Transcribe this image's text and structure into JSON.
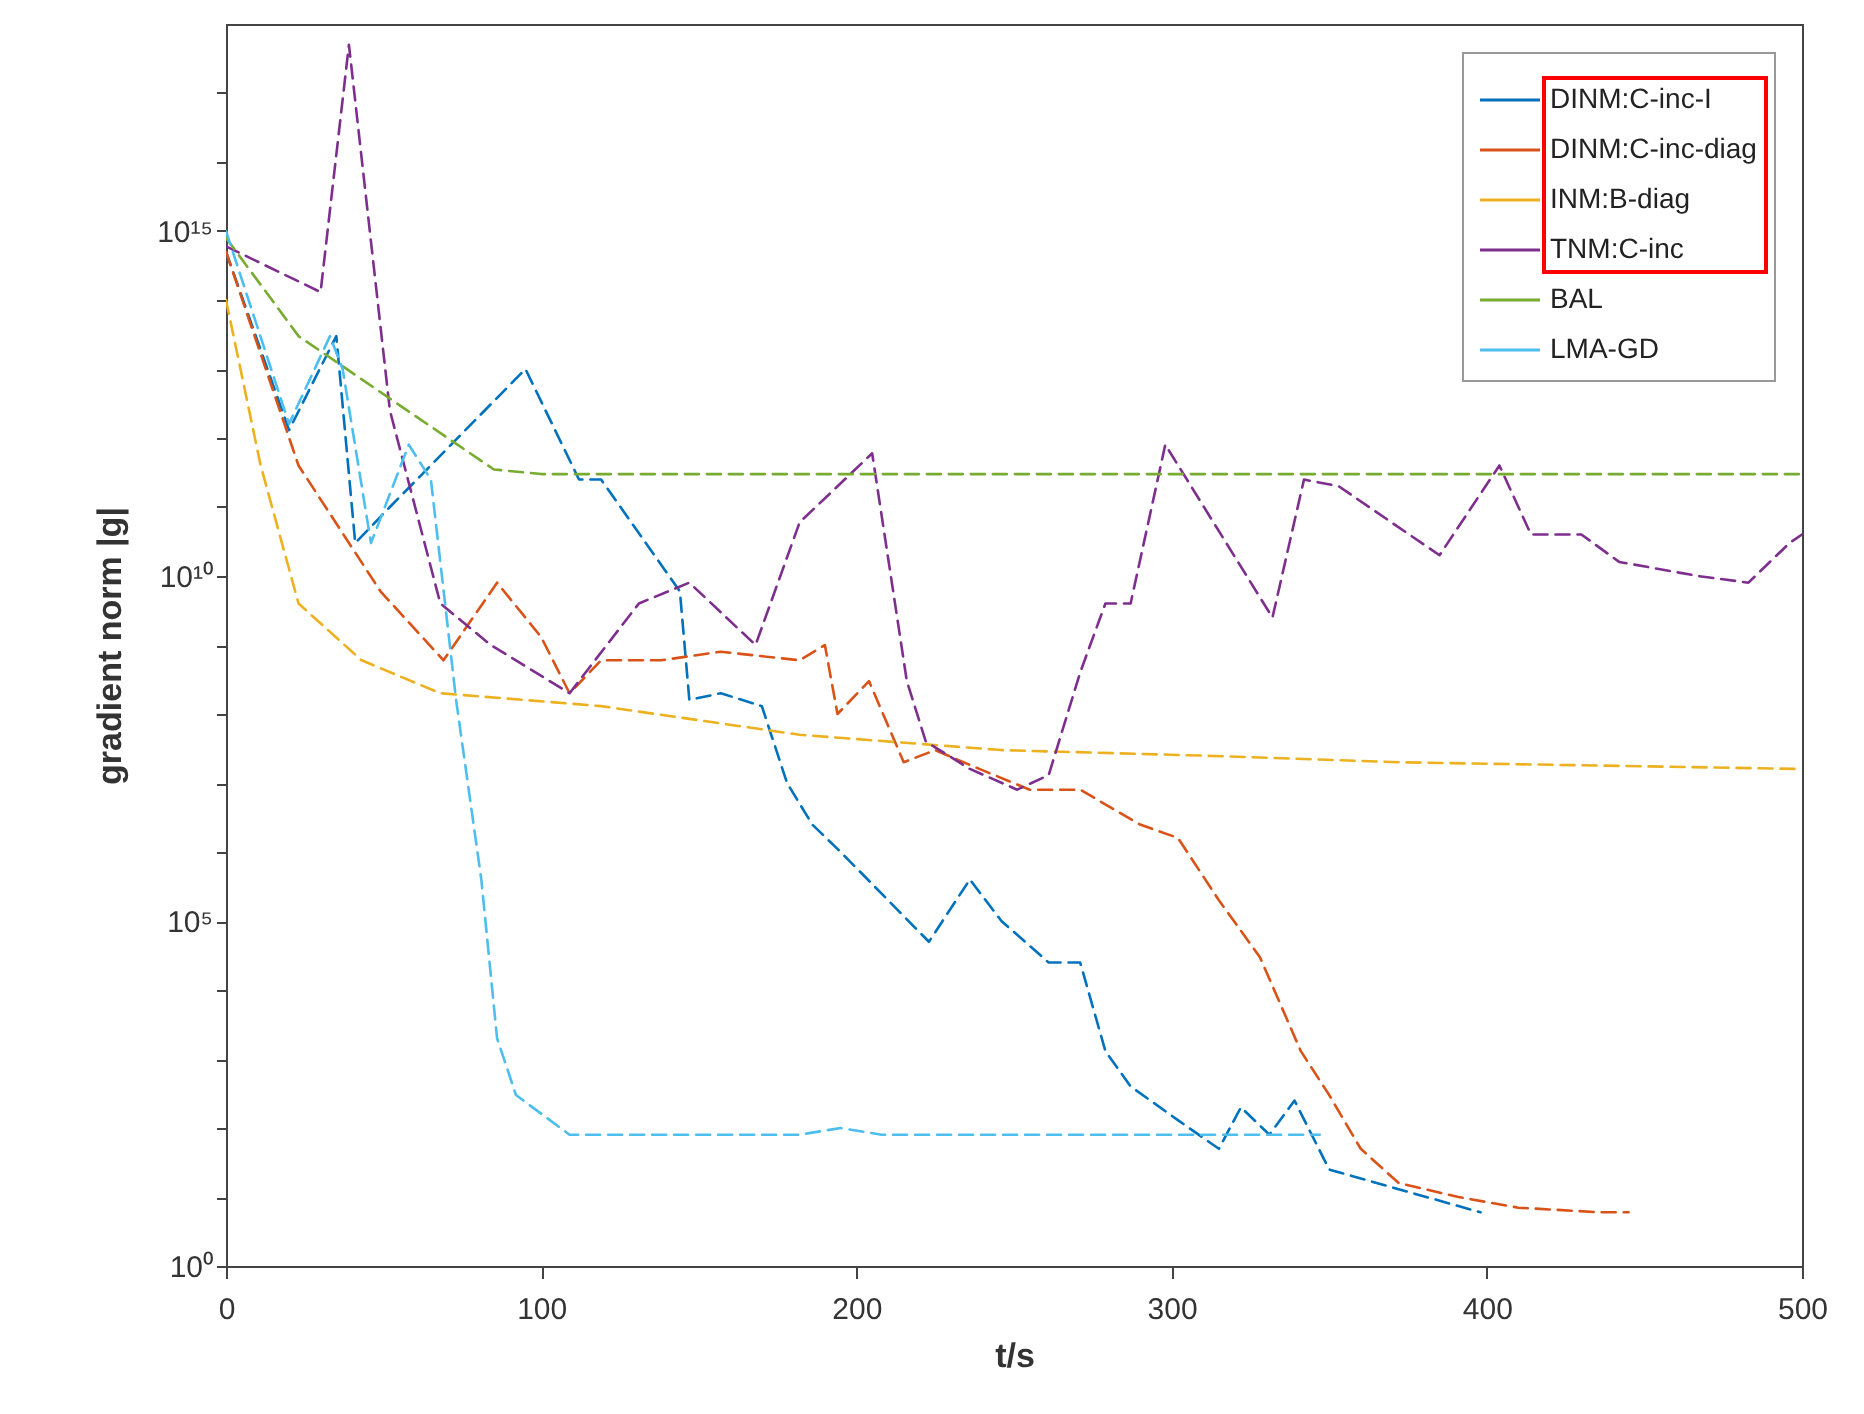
{
  "chart_data": {
    "type": "line",
    "xlabel": "t/s",
    "ylabel": "gradient norm |g|",
    "log": "y",
    "line_style": "dashed",
    "legend": "top right",
    "grid": false,
    "xlim": [
      0,
      500
    ],
    "xticks": [
      0,
      100,
      200,
      300,
      400,
      500
    ],
    "ylim": [
      1,
      1e+18
    ],
    "yticks": [
      {
        "value": 1,
        "label": "10⁰"
      },
      {
        "value": 10,
        "label": null
      },
      {
        "value": 100,
        "label": null
      },
      {
        "value": 1000,
        "label": null
      },
      {
        "value": 10000,
        "label": null
      },
      {
        "value": 100000,
        "label": "10⁵"
      },
      {
        "value": 1000000.0,
        "label": null
      },
      {
        "value": 10000000.0,
        "label": null
      },
      {
        "value": 100000000.0,
        "label": null
      },
      {
        "value": 1000000000.0,
        "label": null
      },
      {
        "value": 10000000000.0,
        "label": "10¹⁰"
      },
      {
        "value": 100000000000.0,
        "label": null
      },
      {
        "value": 1000000000000.0,
        "label": null
      },
      {
        "value": 10000000000000.0,
        "label": null
      },
      {
        "value": 100000000000000.0,
        "label": null
      },
      {
        "value": 1000000000000000.0,
        "label": "10¹⁵"
      },
      {
        "value": 1e+16,
        "label": null
      },
      {
        "value": 1e+17,
        "label": null
      }
    ],
    "series": [
      {
        "name": "DINM:C-inc-I",
        "color": "#0072bd",
        "x": [
          0,
          20,
          35,
          41,
          52,
          95,
          112,
          119,
          144,
          147,
          157,
          170,
          178,
          186,
          195,
          223,
          236,
          246,
          261,
          271,
          279,
          287,
          302,
          315,
          322,
          331,
          339,
          350,
          372,
          398
        ],
        "values": [
          500000000000000.0,
          1300000000000.0,
          30000000000000.0,
          30000000000.0,
          100000000000.0,
          10000000000000.0,
          250000000000.0,
          250000000000.0,
          6000000000.0,
          160000000.0,
          200000000.0,
          130000000.0,
          10000000.0,
          2500000.0,
          1000000.0,
          50000.0,
          400000.0,
          100000.0,
          25000.0,
          25000.0,
          1300,
          400,
          130,
          50,
          200,
          80,
          250,
          25,
          13,
          6
        ]
      },
      {
        "name": "DINM:C-inc-diag",
        "color": "#d95319",
        "x": [
          0,
          23,
          49,
          69,
          86,
          100,
          109,
          119,
          138,
          157,
          182,
          190,
          194,
          204,
          215,
          225,
          239,
          255,
          271,
          290,
          302,
          315,
          328,
          341,
          350,
          360,
          372,
          391,
          410,
          436,
          445
        ],
        "values": [
          500000000000000.0,
          400000000000.0,
          6000000000.0,
          600000000.0,
          8000000000.0,
          1300000000.0,
          200000000.0,
          600000000.0,
          600000000.0,
          800000000.0,
          600000000.0,
          1000000000.0,
          100000000.0,
          300000000.0,
          20000000.0,
          30000000.0,
          16000000.0,
          8000000.0,
          8000000.0,
          2500000.0,
          1600000.0,
          200000.0,
          30000.0,
          1300,
          300,
          50,
          16,
          10,
          7,
          6,
          6
        ]
      },
      {
        "name": "INM:B-diag",
        "color": "#edb120",
        "x": [
          0,
          11,
          23,
          43,
          68,
          119,
          182,
          246,
          309,
          372,
          499
        ],
        "values": [
          100000000000000.0,
          400000000000.0,
          4000000000.0,
          600000000.0,
          200000000.0,
          130000000.0,
          50000000.0,
          30000000.0,
          25000000.0,
          20000000.0,
          16000000.0
        ]
      },
      {
        "name": "TNM:C-inc",
        "color": "#7e2f8e",
        "x": [
          0,
          30,
          39,
          52,
          68,
          84,
          109,
          131,
          147,
          168,
          182,
          205,
          216,
          222,
          236,
          251,
          261,
          271,
          279,
          287,
          298,
          332,
          342,
          353,
          385,
          404,
          414,
          430,
          442,
          467,
          483,
          496,
          500
        ],
        "values": [
          600000000000000.0,
          130000000000000.0,
          5e+17,
          2500000000000.0,
          4000000000.0,
          1000000000.0,
          200000000.0,
          4000000000.0,
          8000000000.0,
          1000000000.0,
          60000000000.0,
          600000000000.0,
          300000000.0,
          40000000.0,
          16000000.0,
          8000000.0,
          13000000.0,
          400000000.0,
          4000000000.0,
          4000000000.0,
          800000000000.0,
          2500000000.0,
          250000000000.0,
          200000000000.0,
          20000000000.0,
          400000000000.0,
          40000000000.0,
          40000000000.0,
          16000000000.0,
          10000000000.0,
          8000000000.0,
          30000000000.0,
          40000000000.0
        ]
      },
      {
        "name": "BAL",
        "color": "#77ac30",
        "x": [
          0,
          23,
          55,
          85,
          100,
          500
        ],
        "values": [
          800000000000000.0,
          30000000000000.0,
          3000000000000.0,
          350000000000.0,
          300000000000.0,
          300000000000.0
        ]
      },
      {
        "name": "LMA-GD",
        "color": "#4dbeee",
        "x": [
          0,
          20,
          33,
          37,
          46,
          58,
          65,
          73,
          81,
          86,
          92,
          109,
          182,
          195,
          208,
          347
        ],
        "values": [
          1000000000000000.0,
          1600000000000.0,
          30000000000000.0,
          10000000000000.0,
          30000000000.0,
          800000000000.0,
          250000000000.0,
          160000000.0,
          400000.0,
          2000,
          300,
          80,
          80,
          100,
          80,
          80
        ]
      }
    ]
  }
}
